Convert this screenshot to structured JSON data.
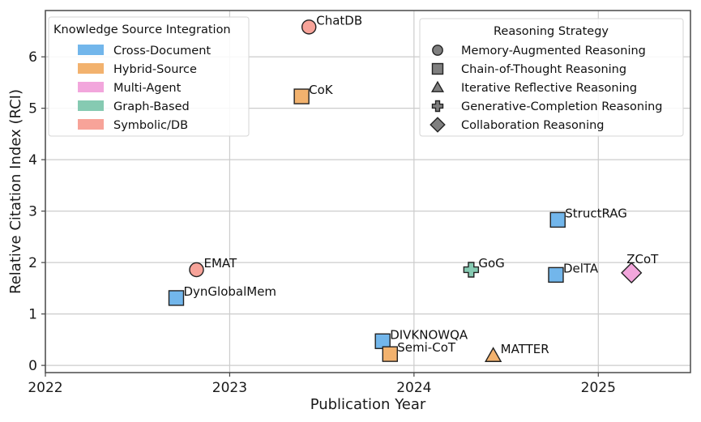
{
  "chart_data": {
    "type": "scatter",
    "title": "",
    "xlabel": "Publication Year",
    "ylabel": "Relative Citation Index (RCI)",
    "xlim": [
      2022,
      2025.5
    ],
    "ylim": [
      -0.14,
      6.9
    ],
    "xticks": [
      2022,
      2023,
      2024,
      2025
    ],
    "xtick_labels": [
      "2022",
      "2023",
      "2024",
      "2025"
    ],
    "yticks": [
      0,
      1,
      2,
      3,
      4,
      5,
      6
    ],
    "ytick_labels": [
      "0",
      "1",
      "2",
      "3",
      "4",
      "5",
      "6"
    ],
    "grid": true,
    "categories": {
      "Cross-Document": "#72b6eb",
      "Hybrid-Source": "#f2b26e",
      "Multi-Agent": "#f2a6dc",
      "Graph-Based": "#86cab2",
      "Symbolic/DB": "#f7a399"
    },
    "strategies": {
      "Memory-Augmented Reasoning": "circle",
      "Chain-of-Thought Reasoning": "square",
      "Iterative Reflective Reasoning": "triangle",
      "Generative-Completion Reasoning": "plus",
      "Collaboration Reasoning": "diamond"
    },
    "points": [
      {
        "name": "DynGlobalMem",
        "x": 2022.71,
        "y": 1.31,
        "category": "Cross-Document",
        "strategy": "Chain-of-Thought Reasoning",
        "label_pos": "right-up"
      },
      {
        "name": "EMAT",
        "x": 2022.82,
        "y": 1.86,
        "category": "Symbolic/DB",
        "strategy": "Memory-Augmented Reasoning",
        "label_pos": "right-up"
      },
      {
        "name": "CoK",
        "x": 2023.39,
        "y": 5.23,
        "category": "Hybrid-Source",
        "strategy": "Chain-of-Thought Reasoning",
        "label_pos": "right-up"
      },
      {
        "name": "ChatDB",
        "x": 2023.43,
        "y": 6.58,
        "category": "Symbolic/DB",
        "strategy": "Memory-Augmented Reasoning",
        "label_pos": "right-up"
      },
      {
        "name": "DIVKNOWQA",
        "x": 2023.83,
        "y": 0.47,
        "category": "Cross-Document",
        "strategy": "Chain-of-Thought Reasoning",
        "label_pos": "right-up"
      },
      {
        "name": "Semi-CoT",
        "x": 2023.87,
        "y": 0.22,
        "category": "Hybrid-Source",
        "strategy": "Chain-of-Thought Reasoning",
        "label_pos": "right-up"
      },
      {
        "name": "GoG",
        "x": 2024.31,
        "y": 1.86,
        "category": "Graph-Based",
        "strategy": "Generative-Completion Reasoning",
        "label_pos": "right-up"
      },
      {
        "name": "MATTER",
        "x": 2024.43,
        "y": 0.19,
        "category": "Hybrid-Source",
        "strategy": "Iterative Reflective Reasoning",
        "label_pos": "right-up"
      },
      {
        "name": "DelTA",
        "x": 2024.77,
        "y": 1.76,
        "category": "Cross-Document",
        "strategy": "Chain-of-Thought Reasoning",
        "label_pos": "right-up"
      },
      {
        "name": "StructRAG",
        "x": 2024.78,
        "y": 2.83,
        "category": "Cross-Document",
        "strategy": "Chain-of-Thought Reasoning",
        "label_pos": "right-up"
      },
      {
        "name": "ZCoT",
        "x": 2025.18,
        "y": 1.8,
        "category": "Multi-Agent",
        "strategy": "Collaboration Reasoning",
        "label_pos": "above"
      }
    ],
    "legends": [
      {
        "title": "Knowledge Source Integration",
        "placement": "top-left",
        "kind": "patch",
        "entries": [
          "Cross-Document",
          "Hybrid-Source",
          "Multi-Agent",
          "Graph-Based",
          "Symbolic/DB"
        ]
      },
      {
        "title": "Reasoning Strategy",
        "placement": "top-right",
        "kind": "marker",
        "marker_color": "#7f7f7f",
        "entries": [
          "Memory-Augmented Reasoning",
          "Chain-of-Thought Reasoning",
          "Iterative Reflective Reasoning",
          "Generative-Completion Reasoning",
          "Collaboration Reasoning"
        ]
      }
    ]
  }
}
